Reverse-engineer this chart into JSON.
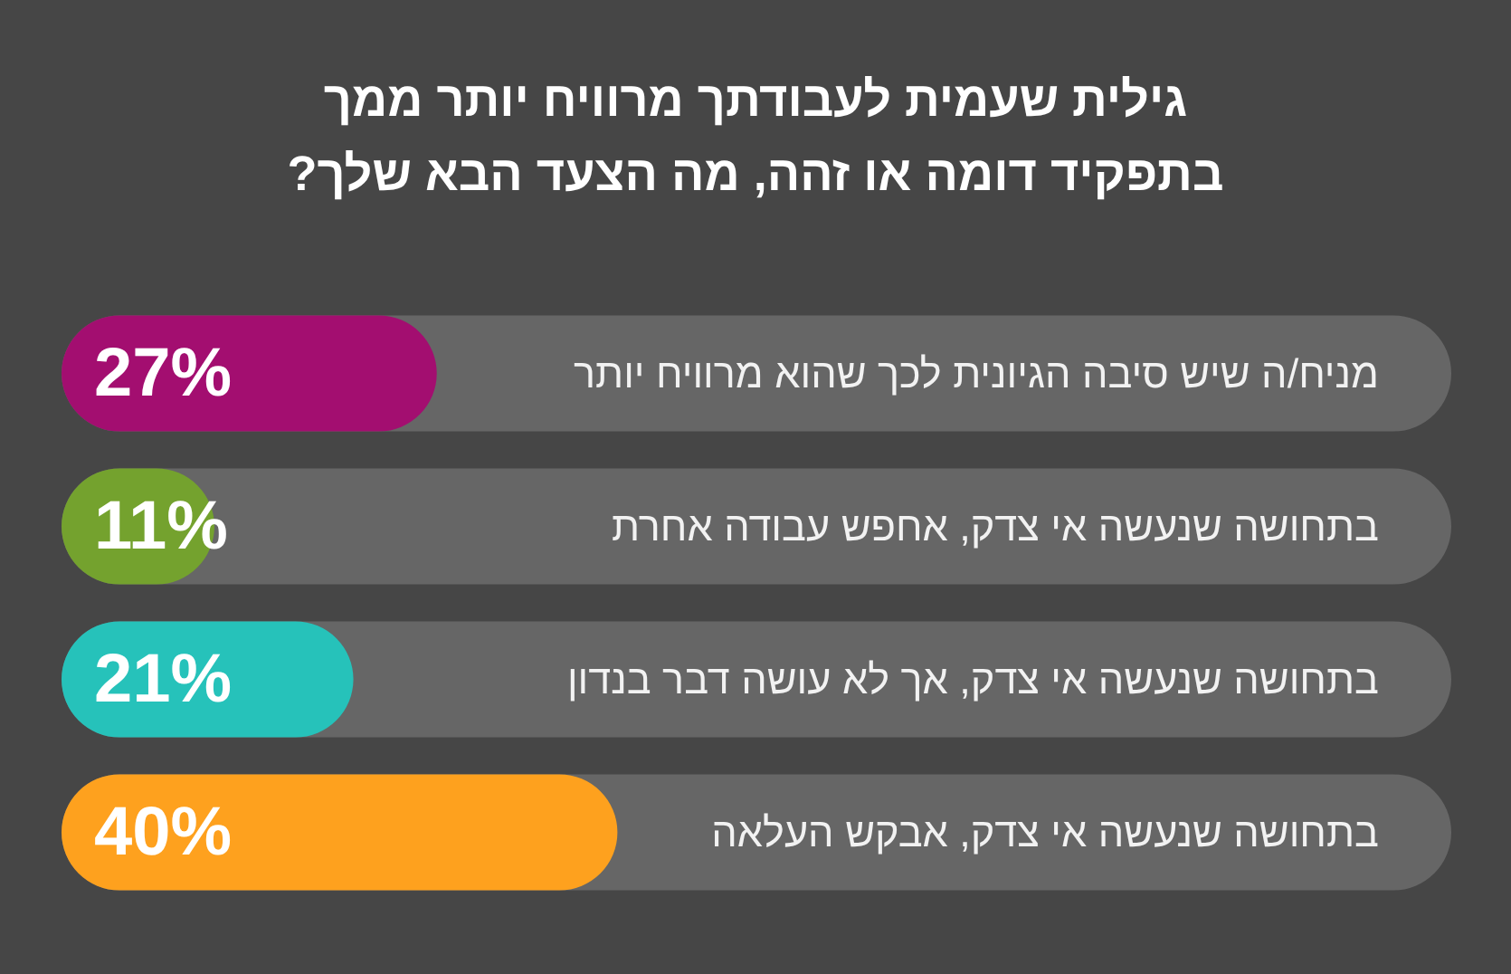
{
  "chart_data": {
    "type": "bar",
    "orientation": "horizontal",
    "title": "גילית שעמית לעבודתך מרוויח יותר ממך\nבתפקיד דומה או זהה, מה הצעד הבא שלך?",
    "categories": [
      "מניח/ה שיש סיבה הגיונית לכך שהוא מרוויח יותר",
      "בתחושה שנעשה אי צדק, אחפש עבודה אחרת",
      "בתחושה שנעשה אי צדק, אך לא עושה דבר בנדון",
      "בתחושה שנעשה אי צדק, אבקש העלאה"
    ],
    "values": [
      27,
      11,
      21,
      40
    ],
    "value_labels": [
      "27%",
      "11%",
      "21%",
      "40%"
    ],
    "colors": [
      "#a30e70",
      "#74a22e",
      "#26c2ba",
      "#fea11e"
    ],
    "xlim": [
      0,
      100
    ],
    "tick_labels": "y",
    "grid": false
  }
}
